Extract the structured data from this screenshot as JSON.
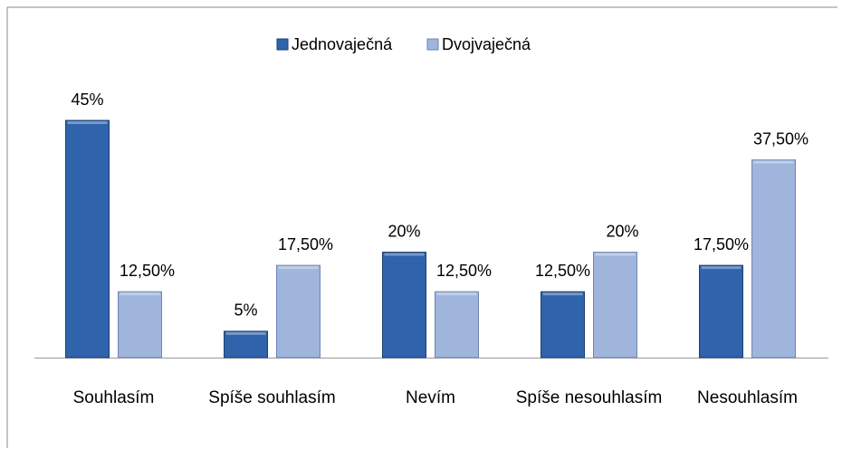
{
  "chart_data": {
    "type": "bar",
    "categories": [
      "Souhlasím",
      "Spíše souhlasím",
      "Nevím",
      "Spíše nesouhlasím",
      "Nesouhlasím"
    ],
    "series": [
      {
        "name": "Jednovaječná",
        "color": "#2f63ab",
        "values": [
          45,
          5,
          20,
          12.5,
          17.5
        ],
        "value_labels": [
          "45%",
          "5%",
          "20%",
          "12,50%",
          "17,50%"
        ]
      },
      {
        "name": "Dvojvaječná",
        "color": "#9fb5dc",
        "values": [
          12.5,
          17.5,
          12.5,
          20,
          37.5
        ],
        "value_labels": [
          "12,50%",
          "17,50%",
          "12,50%",
          "20%",
          "37,50%"
        ]
      }
    ],
    "legend": "top"
  }
}
